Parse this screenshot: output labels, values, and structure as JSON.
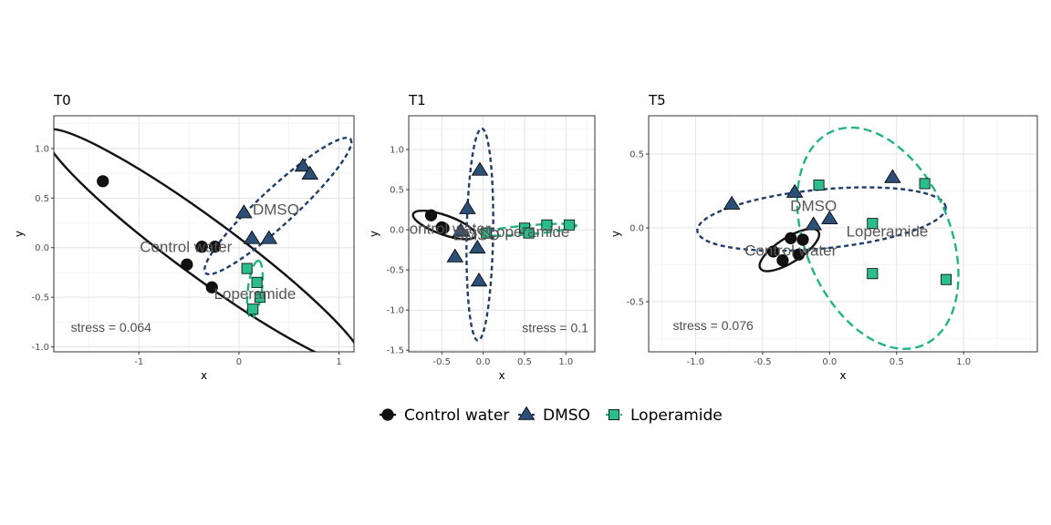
{
  "colors": {
    "Control water": "#111111",
    "DMSO": "#1f3f6a",
    "Loperamide": "#20b386",
    "DMSO_fill": "#2c4f78",
    "Loperamide_fill": "#2bbd8a"
  },
  "legend": {
    "position": "bottom",
    "items": [
      {
        "label": "Control water",
        "shape": "circle"
      },
      {
        "label": "DMSO",
        "shape": "triangle"
      },
      {
        "label": "Loperamide",
        "shape": "square"
      }
    ]
  },
  "chart_data": [
    {
      "type": "scatter",
      "title": "T0",
      "xlabel": "x",
      "ylabel": "y",
      "xlim": [
        -1.85,
        1.15
      ],
      "ylim": [
        -1.05,
        1.33
      ],
      "xticks": [
        -1,
        0,
        1
      ],
      "xtick_labels": [
        "-1",
        "0",
        "1"
      ],
      "yticks": [
        -1.0,
        -0.5,
        0.0,
        0.5,
        1.0
      ],
      "ytick_labels": [
        "-1.0",
        "-0.5",
        "0.0",
        "0.5",
        "1.0"
      ],
      "grid": true,
      "stress_text": "stress = 0.064",
      "stress_pos": [
        -1.68,
        -0.8
      ],
      "series": [
        {
          "name": "Control water",
          "points": [
            [
              -1.36,
              0.67
            ],
            [
              -0.37,
              0.01
            ],
            [
              -0.24,
              0.01
            ],
            [
              -0.52,
              -0.17
            ],
            [
              -0.27,
              -0.4
            ]
          ],
          "label_pos": [
            -0.53,
            0.01
          ],
          "ellipse": {
            "cx": -0.35,
            "cy": 0.0,
            "rx": 1.97,
            "ry": 0.29,
            "angle": -36.5
          }
        },
        {
          "name": "DMSO",
          "points": [
            [
              0.05,
              0.35
            ],
            [
              0.13,
              0.09
            ],
            [
              0.3,
              0.09
            ],
            [
              0.64,
              0.82
            ],
            [
              0.71,
              0.74
            ]
          ],
          "label_pos": [
            0.37,
            0.39
          ],
          "ellipse": {
            "cx": 0.39,
            "cy": 0.42,
            "rx": 0.99,
            "ry": 0.18,
            "angle": 43
          }
        },
        {
          "name": "Loperamide",
          "points": [
            [
              0.08,
              -0.21
            ],
            [
              0.18,
              -0.35
            ],
            [
              0.21,
              -0.5
            ],
            [
              0.14,
              -0.62
            ]
          ],
          "label_pos": [
            0.16,
            -0.46
          ],
          "ellipse": {
            "cx": 0.16,
            "cy": -0.42,
            "rx": 0.29,
            "ry": 0.07,
            "angle": 83
          }
        }
      ]
    },
    {
      "type": "scatter",
      "title": "T1",
      "xlabel": "x",
      "ylabel": "y",
      "xlim": [
        -0.9,
        1.35
      ],
      "ylim": [
        -1.52,
        1.42
      ],
      "xticks": [
        -0.5,
        0.0,
        0.5,
        1.0
      ],
      "xtick_labels": [
        "-0.5",
        "0.0",
        "0.5",
        "1.0"
      ],
      "yticks": [
        -1.5,
        -1.0,
        -0.5,
        0.0,
        0.5,
        1.0
      ],
      "ytick_labels": [
        "-1.5",
        "-1.0",
        "-0.5",
        "0.0",
        "0.5",
        "1.0"
      ],
      "grid": true,
      "stress_text": "stress = 0.1",
      "stress_pos": [
        0.47,
        -1.22
      ],
      "series": [
        {
          "name": "Control water",
          "points": [
            [
              -0.63,
              0.18
            ],
            [
              -0.5,
              0.03
            ],
            [
              -0.48,
              0.02
            ]
          ],
          "label_pos": [
            -0.47,
            0.02
          ],
          "ellipse": {
            "cx": -0.47,
            "cy": 0.06,
            "rx": 0.4,
            "ry": 0.12,
            "angle": -20
          }
        },
        {
          "name": "DMSO",
          "points": [
            [
              -0.04,
              0.74
            ],
            [
              -0.19,
              0.26
            ],
            [
              -0.27,
              -0.02
            ],
            [
              -0.34,
              -0.34
            ],
            [
              -0.07,
              -0.23
            ],
            [
              -0.05,
              -0.64
            ]
          ],
          "label_pos": [
            -0.08,
            -0.06
          ],
          "ellipse": {
            "cx": -0.04,
            "cy": -0.06,
            "rx": 1.32,
            "ry": 0.16,
            "angle": 89
          }
        },
        {
          "name": "Loperamide",
          "points": [
            [
              0.04,
              -0.04
            ],
            [
              0.5,
              0.02
            ],
            [
              0.55,
              -0.04
            ],
            [
              0.77,
              0.06
            ],
            [
              1.04,
              0.06
            ]
          ],
          "label_pos": [
            0.55,
            -0.02
          ],
          "ellipse": {
            "cx": 0.55,
            "cy": 0.0,
            "rx": 0.58,
            "ry": 0.055,
            "angle": 5
          }
        }
      ]
    },
    {
      "type": "scatter",
      "title": "T5",
      "xlabel": "x",
      "ylabel": "y",
      "xlim": [
        -1.35,
        1.55
      ],
      "ylim": [
        -0.84,
        0.76
      ],
      "xticks": [
        -1.0,
        -0.5,
        0.0,
        0.5,
        1.0
      ],
      "xtick_labels": [
        "-1.0",
        "-0.5",
        "0.0",
        "0.5",
        "1.0"
      ],
      "yticks": [
        -0.5,
        0.0,
        0.5
      ],
      "ytick_labels": [
        "-0.5",
        "0.0",
        "0.5"
      ],
      "grid": true,
      "stress_text": "stress = 0.076",
      "stress_pos": [
        -1.17,
        -0.66
      ],
      "series": [
        {
          "name": "Control water",
          "points": [
            [
              -0.42,
              -0.16
            ],
            [
              -0.29,
              -0.07
            ],
            [
              -0.2,
              -0.08
            ],
            [
              -0.23,
              -0.18
            ],
            [
              -0.35,
              -0.22
            ]
          ],
          "label_pos": [
            -0.29,
            -0.15
          ],
          "ellipse": {
            "cx": -0.3,
            "cy": -0.15,
            "rx": 0.25,
            "ry": 0.085,
            "angle": 30
          }
        },
        {
          "name": "DMSO",
          "points": [
            [
              -0.73,
              0.16
            ],
            [
              -0.26,
              0.24
            ],
            [
              -0.12,
              0.02
            ],
            [
              0.0,
              0.06
            ],
            [
              0.47,
              0.34
            ]
          ],
          "label_pos": [
            -0.12,
            0.15
          ],
          "ellipse": {
            "cx": -0.06,
            "cy": 0.06,
            "rx": 0.93,
            "ry": 0.2,
            "angle": 5
          }
        },
        {
          "name": "Loperamide",
          "points": [
            [
              -0.08,
              0.29
            ],
            [
              0.32,
              0.03
            ],
            [
              0.71,
              0.3
            ],
            [
              0.32,
              -0.31
            ],
            [
              0.87,
              -0.35
            ]
          ],
          "label_pos": [
            0.43,
            -0.02
          ],
          "ellipse": {
            "cx": 0.36,
            "cy": -0.07,
            "rx": 0.8,
            "ry": 0.53,
            "angle": -65
          }
        }
      ]
    }
  ]
}
